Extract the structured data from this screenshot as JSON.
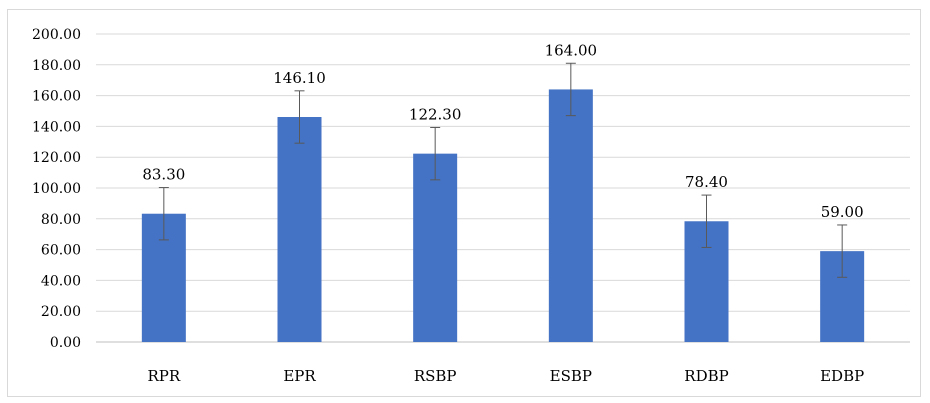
{
  "chart_data": {
    "type": "bar",
    "title": "",
    "xlabel": "",
    "ylabel": "",
    "categories": [
      "RPR",
      "EPR",
      "RSBP",
      "ESBP",
      "RDBP",
      "EDBP"
    ],
    "values": [
      83.3,
      146.1,
      122.3,
      164.0,
      78.4,
      59.0
    ],
    "data_labels": [
      "83.30",
      "146.10",
      "122.30",
      "164.00",
      "78.40",
      "59.00"
    ],
    "error": [
      17,
      17,
      17,
      17,
      17,
      17
    ],
    "ylim": [
      0,
      200
    ],
    "ytick_step": 20,
    "ytick_labels": [
      "0.00",
      "20.00",
      "40.00",
      "60.00",
      "80.00",
      "100.00",
      "120.00",
      "140.00",
      "160.00",
      "180.00",
      "200.00"
    ],
    "grid": true,
    "legend": "none",
    "colors": {
      "bar": "#4472c4",
      "grid": "#d9d9d9",
      "error_bar": "#595959",
      "axis": "#bfbfbf"
    }
  }
}
